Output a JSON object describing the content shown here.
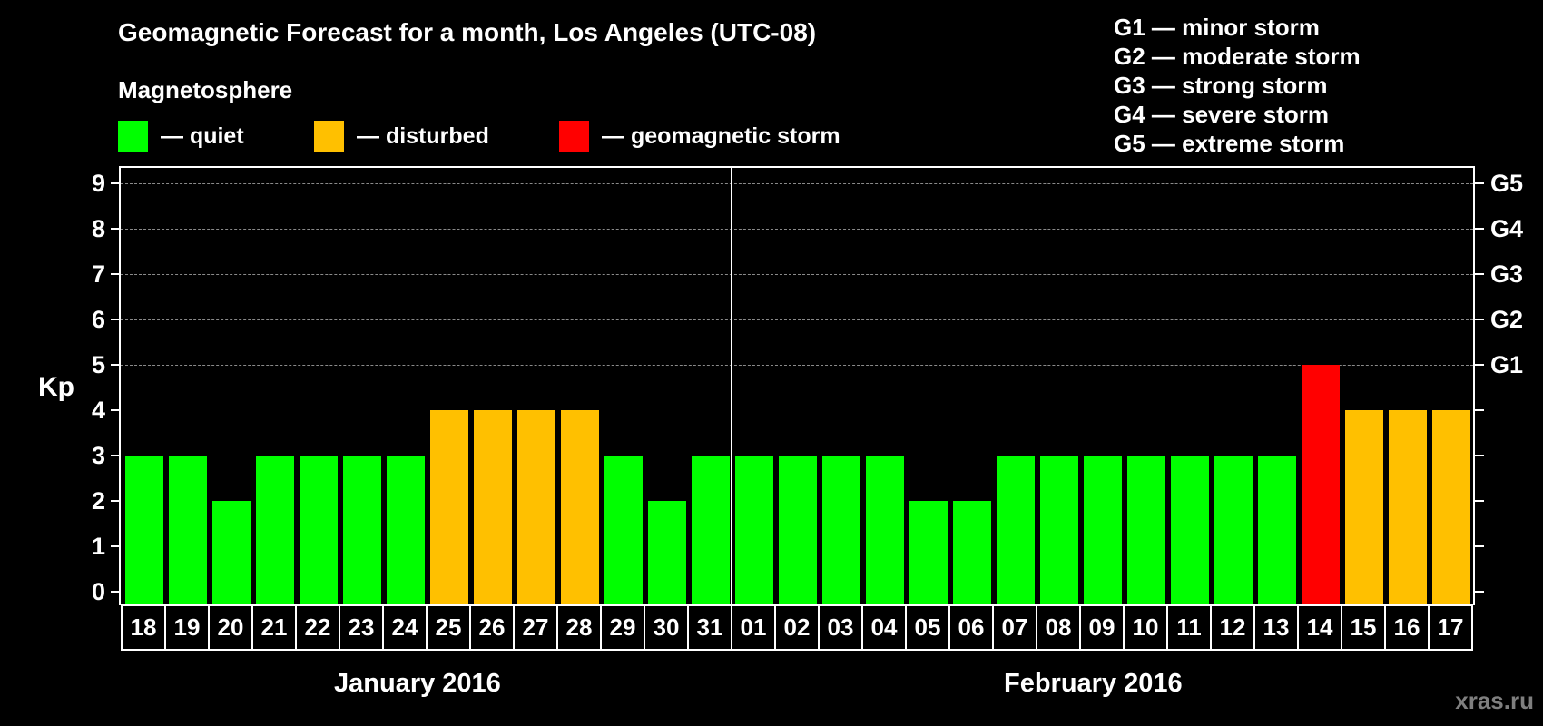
{
  "title": "Geomagnetic Forecast for a month, Los Angeles (UTC-08)",
  "subtitle": "Magnetosphere",
  "legend": [
    {
      "label": "— quiet",
      "color": "#00ff00"
    },
    {
      "label": "— disturbed",
      "color": "#ffc000"
    },
    {
      "label": "— geomagnetic storm",
      "color": "#ff0000"
    }
  ],
  "g_scale_legend": [
    "G1 — minor storm",
    "G2 — moderate storm",
    "G3 — strong storm",
    "G4 — severe storm",
    "G5 — extreme storm"
  ],
  "yaxis": {
    "label": "Kp",
    "ticks": [
      "0",
      "1",
      "2",
      "3",
      "4",
      "5",
      "6",
      "7",
      "8",
      "9"
    ],
    "right_ticks": {
      "5": "G1",
      "6": "G2",
      "7": "G3",
      "8": "G4",
      "9": "G5"
    }
  },
  "months": [
    "January 2016",
    "February 2016"
  ],
  "watermark": "xras.ru",
  "colors": {
    "quiet": "#00ff00",
    "disturbed": "#ffc000",
    "storm": "#ff0000",
    "background": "#000000",
    "grid": "#8a8a8a"
  },
  "chart_data": {
    "type": "bar",
    "title": "Geomagnetic Forecast for a month, Los Angeles (UTC-08)",
    "subtitle": "Magnetosphere",
    "xlabel": "",
    "ylabel": "Kp",
    "ylim": [
      0,
      9
    ],
    "grid": "dashed horizontal lines at Kp 5-9",
    "legend_position": "top",
    "categories": [
      "18",
      "19",
      "20",
      "21",
      "22",
      "23",
      "24",
      "25",
      "26",
      "27",
      "28",
      "29",
      "30",
      "31",
      "01",
      "02",
      "03",
      "04",
      "05",
      "06",
      "07",
      "08",
      "09",
      "10",
      "11",
      "12",
      "13",
      "14",
      "15",
      "16",
      "17"
    ],
    "category_months": [
      "January 2016",
      "January 2016",
      "January 2016",
      "January 2016",
      "January 2016",
      "January 2016",
      "January 2016",
      "January 2016",
      "January 2016",
      "January 2016",
      "January 2016",
      "January 2016",
      "January 2016",
      "January 2016",
      "February 2016",
      "February 2016",
      "February 2016",
      "February 2016",
      "February 2016",
      "February 2016",
      "February 2016",
      "February 2016",
      "February 2016",
      "February 2016",
      "February 2016",
      "February 2016",
      "February 2016",
      "February 2016",
      "February 2016",
      "February 2016",
      "February 2016"
    ],
    "values": [
      3,
      3,
      2,
      3,
      3,
      3,
      3,
      4,
      4,
      4,
      4,
      3,
      2,
      3,
      3,
      3,
      3,
      3,
      2,
      2,
      3,
      3,
      3,
      3,
      3,
      3,
      3,
      5,
      4,
      4,
      4
    ],
    "status": [
      "quiet",
      "quiet",
      "quiet",
      "quiet",
      "quiet",
      "quiet",
      "quiet",
      "disturbed",
      "disturbed",
      "disturbed",
      "disturbed",
      "quiet",
      "quiet",
      "quiet",
      "quiet",
      "quiet",
      "quiet",
      "quiet",
      "quiet",
      "quiet",
      "quiet",
      "quiet",
      "quiet",
      "quiet",
      "quiet",
      "quiet",
      "quiet",
      "storm",
      "disturbed",
      "disturbed",
      "disturbed"
    ],
    "legend": [
      "quiet",
      "disturbed",
      "geomagnetic storm"
    ],
    "right_axis_labels": {
      "5": "G1",
      "6": "G2",
      "7": "G3",
      "8": "G4",
      "9": "G5"
    }
  }
}
